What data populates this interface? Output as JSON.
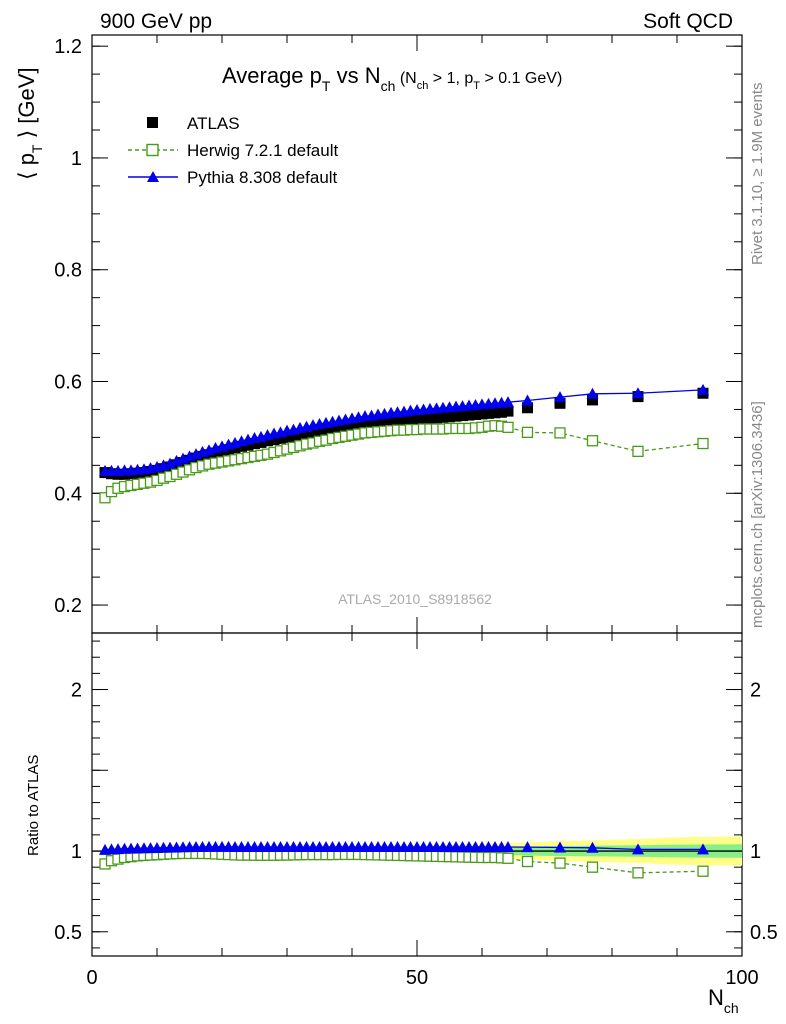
{
  "header": {
    "left": "900 GeV pp",
    "right": "Soft QCD",
    "title_main": "Average p",
    "title_sub_T": "T",
    "title_vs": " vs N",
    "title_sub_ch": "ch",
    "title_cond_1": " (N",
    "title_cond_sub_ch": "ch",
    "title_cond_2": " > 1, p",
    "title_cond_sub_T": "T",
    "title_cond_3": " > 0.1 GeV)"
  },
  "side_labels": {
    "rivet": "Rivet 3.1.10, ≥ 1.9M events",
    "mcplots": "mcplots.cern.ch [arXiv:1306.3436]"
  },
  "watermark": "ATLAS_2010_S8918562",
  "ylabel_main": {
    "open": "⟨ p",
    "sub": "T",
    "close": " ⟩ [GeV]"
  },
  "ylabel_ratio": "Ratio to ATLAS",
  "xlabel": {
    "main": "N",
    "sub": "ch"
  },
  "legend": [
    {
      "label": "ATLAS",
      "marker": "filled-square",
      "color": "#000000"
    },
    {
      "label": "Herwig 7.2.1 default",
      "marker": "open-square",
      "color": "#4a9a1a",
      "dashed": true
    },
    {
      "label": "Pythia 8.308 default",
      "marker": "filled-triangle",
      "color": "#0000ee"
    }
  ],
  "chart_data": [
    {
      "type": "scatter",
      "panel": "main",
      "xlim": [
        0,
        100
      ],
      "ylim": [
        0.15,
        1.22
      ],
      "yticks": [
        "0.2",
        "0.4",
        "0.6",
        "0.8",
        "1",
        "1.2"
      ],
      "xticks": [
        "0",
        "50",
        "100"
      ],
      "series": [
        {
          "name": "ATLAS",
          "x": [
            2,
            3,
            4,
            5,
            6,
            7,
            8,
            9,
            10,
            11,
            12,
            13,
            14,
            15,
            16,
            17,
            18,
            19,
            20,
            21,
            22,
            23,
            24,
            25,
            26,
            27,
            28,
            29,
            30,
            31,
            32,
            33,
            34,
            35,
            36,
            37,
            38,
            39,
            40,
            41,
            42,
            43,
            44,
            45,
            46,
            47,
            48,
            49,
            50,
            51,
            52,
            53,
            54,
            55,
            56,
            57,
            58,
            59,
            60,
            61,
            62,
            63,
            64,
            67,
            72,
            77,
            84,
            94
          ],
          "y": [
            0.437,
            0.435,
            0.434,
            0.434,
            0.435,
            0.436,
            0.437,
            0.439,
            0.441,
            0.444,
            0.447,
            0.451,
            0.455,
            0.459,
            0.463,
            0.466,
            0.469,
            0.472,
            0.475,
            0.478,
            0.481,
            0.484,
            0.486,
            0.489,
            0.491,
            0.494,
            0.496,
            0.498,
            0.5,
            0.502,
            0.504,
            0.506,
            0.508,
            0.51,
            0.512,
            0.514,
            0.515,
            0.517,
            0.518,
            0.52,
            0.521,
            0.523,
            0.524,
            0.525,
            0.527,
            0.528,
            0.529,
            0.53,
            0.531,
            0.533,
            0.534,
            0.535,
            0.536,
            0.537,
            0.538,
            0.539,
            0.54,
            0.541,
            0.542,
            0.543,
            0.544,
            0.545,
            0.547,
            0.553,
            0.561,
            0.567,
            0.573,
            0.579
          ]
        },
        {
          "name": "Herwig 7.2.1 default",
          "x": [
            2,
            3,
            4,
            5,
            6,
            7,
            8,
            9,
            10,
            11,
            12,
            13,
            14,
            15,
            16,
            17,
            18,
            19,
            20,
            21,
            22,
            23,
            24,
            25,
            26,
            27,
            28,
            29,
            30,
            31,
            32,
            33,
            34,
            35,
            36,
            37,
            38,
            39,
            40,
            41,
            42,
            43,
            44,
            45,
            46,
            47,
            48,
            49,
            50,
            51,
            52,
            53,
            54,
            55,
            56,
            57,
            58,
            59,
            60,
            61,
            62,
            63,
            64,
            67,
            72,
            77,
            84,
            94
          ],
          "y": [
            0.392,
            0.403,
            0.409,
            0.412,
            0.414,
            0.416,
            0.418,
            0.42,
            0.423,
            0.427,
            0.43,
            0.434,
            0.438,
            0.442,
            0.446,
            0.449,
            0.452,
            0.454,
            0.456,
            0.458,
            0.46,
            0.462,
            0.464,
            0.466,
            0.468,
            0.47,
            0.473,
            0.476,
            0.479,
            0.482,
            0.485,
            0.488,
            0.49,
            0.493,
            0.495,
            0.498,
            0.5,
            0.502,
            0.504,
            0.506,
            0.508,
            0.509,
            0.51,
            0.511,
            0.512,
            0.513,
            0.513,
            0.514,
            0.514,
            0.515,
            0.515,
            0.515,
            0.515,
            0.516,
            0.516,
            0.516,
            0.516,
            0.517,
            0.518,
            0.52,
            0.521,
            0.52,
            0.518,
            0.509,
            0.508,
            0.494,
            0.475,
            0.489
          ]
        },
        {
          "name": "Pythia 8.308 default",
          "x": [
            2,
            3,
            4,
            5,
            6,
            7,
            8,
            9,
            10,
            11,
            12,
            13,
            14,
            15,
            16,
            17,
            18,
            19,
            20,
            21,
            22,
            23,
            24,
            25,
            26,
            27,
            28,
            29,
            30,
            31,
            32,
            33,
            34,
            35,
            36,
            37,
            38,
            39,
            40,
            41,
            42,
            43,
            44,
            45,
            46,
            47,
            48,
            49,
            50,
            51,
            52,
            53,
            54,
            55,
            56,
            57,
            58,
            59,
            60,
            61,
            62,
            63,
            64,
            67,
            72,
            77,
            84,
            94
          ],
          "y": [
            0.44,
            0.44,
            0.44,
            0.441,
            0.441,
            0.442,
            0.443,
            0.445,
            0.447,
            0.45,
            0.453,
            0.458,
            0.462,
            0.466,
            0.47,
            0.474,
            0.477,
            0.481,
            0.484,
            0.487,
            0.49,
            0.493,
            0.496,
            0.499,
            0.501,
            0.504,
            0.507,
            0.509,
            0.512,
            0.514,
            0.517,
            0.519,
            0.522,
            0.524,
            0.526,
            0.528,
            0.53,
            0.532,
            0.534,
            0.536,
            0.538,
            0.539,
            0.541,
            0.542,
            0.544,
            0.545,
            0.546,
            0.548,
            0.549,
            0.55,
            0.551,
            0.552,
            0.553,
            0.554,
            0.555,
            0.556,
            0.557,
            0.558,
            0.559,
            0.56,
            0.561,
            0.562,
            0.563,
            0.566,
            0.572,
            0.578,
            0.579,
            0.585
          ]
        }
      ]
    },
    {
      "type": "scatter",
      "panel": "ratio",
      "xlim": [
        0,
        100
      ],
      "ylim": [
        0.35,
        2.35
      ],
      "yticks": [
        "0.5",
        "1",
        "2"
      ],
      "xticks": [
        "0",
        "50",
        "100"
      ],
      "band": {
        "x": [
          2,
          10,
          20,
          30,
          40,
          50,
          55,
          60,
          65,
          70,
          75,
          80,
          85,
          90,
          100
        ],
        "inner": [
          0.018,
          0.015,
          0.015,
          0.016,
          0.017,
          0.02,
          0.022,
          0.024,
          0.026,
          0.03,
          0.032,
          0.034,
          0.036,
          0.04,
          0.042
        ],
        "outer": [
          0.03,
          0.025,
          0.025,
          0.026,
          0.028,
          0.034,
          0.04,
          0.046,
          0.05,
          0.058,
          0.064,
          0.07,
          0.076,
          0.085,
          0.09
        ]
      },
      "series": [
        {
          "name": "Herwig 7.2.1 default",
          "x": [
            2,
            3,
            4,
            5,
            6,
            7,
            8,
            9,
            10,
            11,
            12,
            13,
            14,
            15,
            16,
            17,
            18,
            19,
            20,
            21,
            22,
            23,
            24,
            25,
            26,
            27,
            28,
            29,
            30,
            31,
            32,
            33,
            34,
            35,
            36,
            37,
            38,
            39,
            40,
            41,
            42,
            43,
            44,
            45,
            46,
            47,
            48,
            49,
            50,
            51,
            52,
            53,
            54,
            55,
            56,
            57,
            58,
            59,
            60,
            61,
            62,
            63,
            64,
            67,
            72,
            77,
            84,
            94
          ],
          "y": [
            0.92,
            0.94,
            0.95,
            0.96,
            0.965,
            0.97,
            0.973,
            0.975,
            0.977,
            0.98,
            0.982,
            0.984,
            0.985,
            0.985,
            0.985,
            0.985,
            0.984,
            0.982,
            0.98,
            0.978,
            0.976,
            0.975,
            0.975,
            0.974,
            0.974,
            0.974,
            0.974,
            0.975,
            0.975,
            0.976,
            0.977,
            0.978,
            0.978,
            0.978,
            0.978,
            0.978,
            0.979,
            0.979,
            0.979,
            0.979,
            0.978,
            0.977,
            0.976,
            0.975,
            0.974,
            0.973,
            0.972,
            0.971,
            0.97,
            0.969,
            0.968,
            0.967,
            0.966,
            0.965,
            0.964,
            0.963,
            0.962,
            0.961,
            0.96,
            0.96,
            0.96,
            0.958,
            0.955,
            0.935,
            0.925,
            0.9,
            0.865,
            0.875
          ]
        },
        {
          "name": "Pythia 8.308 default",
          "x": [
            2,
            3,
            4,
            5,
            6,
            7,
            8,
            9,
            10,
            11,
            12,
            13,
            14,
            15,
            16,
            17,
            18,
            19,
            20,
            21,
            22,
            23,
            24,
            25,
            26,
            27,
            28,
            29,
            30,
            31,
            32,
            33,
            34,
            35,
            36,
            37,
            38,
            39,
            40,
            41,
            42,
            43,
            44,
            45,
            46,
            47,
            48,
            49,
            50,
            51,
            52,
            53,
            54,
            55,
            56,
            57,
            58,
            59,
            60,
            61,
            62,
            63,
            64,
            67,
            72,
            77,
            84,
            94
          ],
          "y": [
            1.007,
            1.01,
            1.012,
            1.014,
            1.015,
            1.016,
            1.017,
            1.018,
            1.019,
            1.02,
            1.021,
            1.022,
            1.023,
            1.024,
            1.025,
            1.025,
            1.026,
            1.026,
            1.026,
            1.026,
            1.025,
            1.025,
            1.025,
            1.025,
            1.025,
            1.025,
            1.025,
            1.025,
            1.025,
            1.025,
            1.025,
            1.025,
            1.025,
            1.025,
            1.025,
            1.025,
            1.025,
            1.025,
            1.025,
            1.025,
            1.025,
            1.025,
            1.025,
            1.025,
            1.025,
            1.025,
            1.025,
            1.025,
            1.025,
            1.025,
            1.025,
            1.025,
            1.025,
            1.025,
            1.025,
            1.025,
            1.025,
            1.025,
            1.025,
            1.025,
            1.025,
            1.025,
            1.025,
            1.024,
            1.022,
            1.02,
            1.01,
            1.01
          ]
        }
      ]
    }
  ]
}
